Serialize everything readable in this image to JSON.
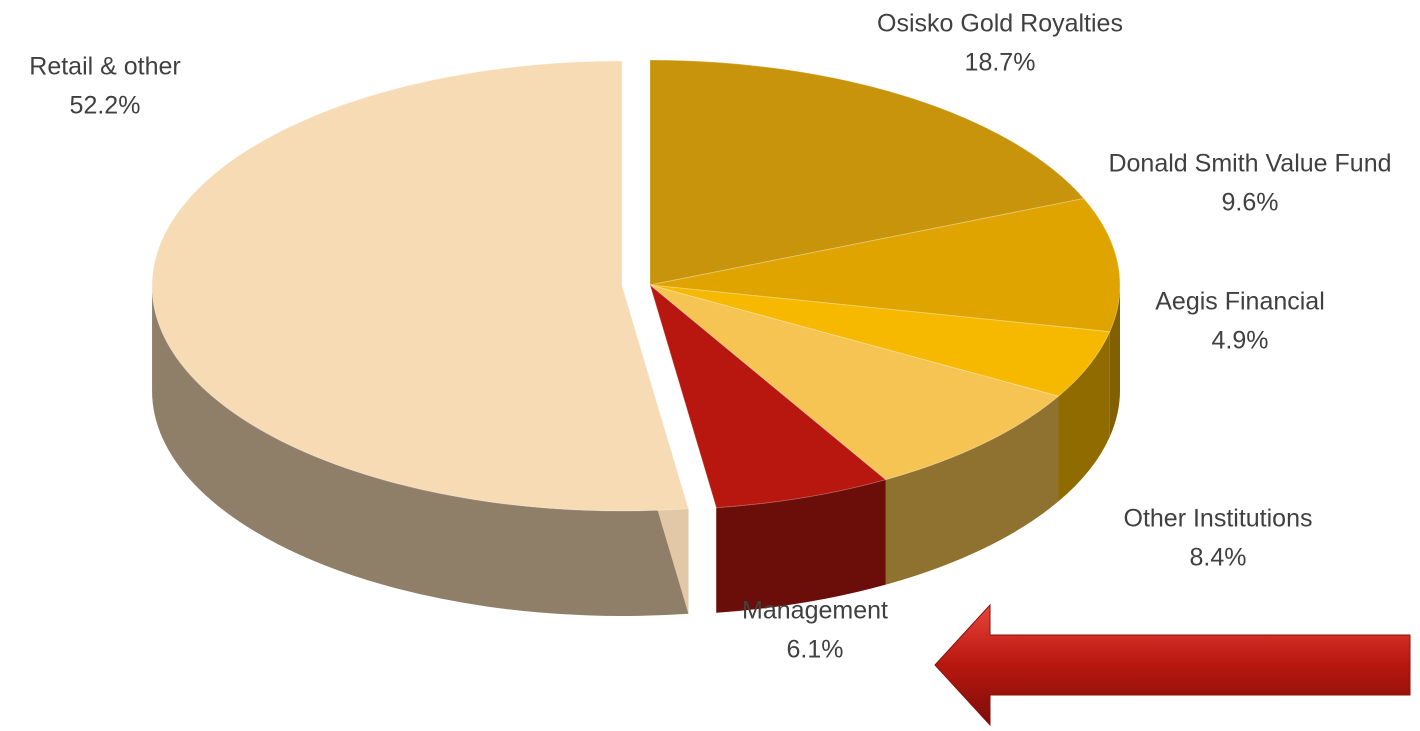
{
  "chart_data": {
    "type": "pie",
    "categories": [
      "Osisko Gold Royalties",
      "Donald Smith Value Fund",
      "Aegis Financial",
      "Other Institutions",
      "Management",
      "Retail & other"
    ],
    "values": [
      18.7,
      9.6,
      4.9,
      8.4,
      6.1,
      52.2
    ],
    "value_labels": [
      "18.7%",
      "9.6%",
      "4.9%",
      "8.4%",
      "6.1%",
      "52.2%"
    ],
    "colors": [
      "#c8940c",
      "#e0a400",
      "#f6b900",
      "#f6c453",
      "#b8170f",
      "#f6dbb5"
    ]
  }
}
